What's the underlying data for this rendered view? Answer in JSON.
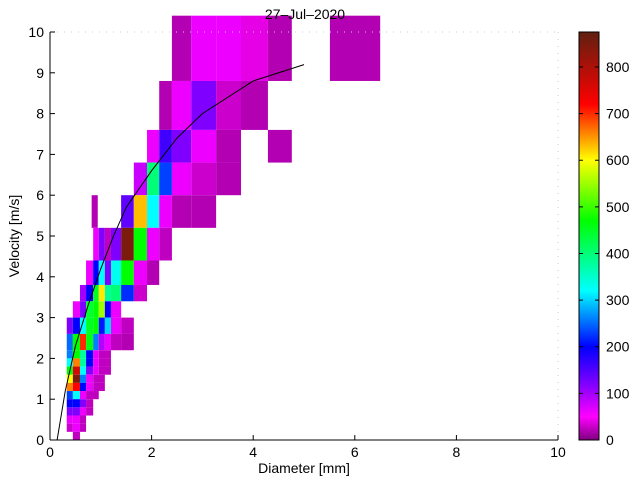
{
  "chart_data": {
    "type": "heatmap",
    "title": "27–Jul–2020",
    "xlabel": "Diameter [mm]",
    "ylabel": "Velocity [m/s]",
    "xlim": [
      0,
      10
    ],
    "ylim": [
      0,
      10
    ],
    "xticks": [
      "0",
      "2",
      "4",
      "6",
      "8",
      "10"
    ],
    "yticks": [
      "0",
      "1",
      "2",
      "3",
      "4",
      "5",
      "6",
      "7",
      "8",
      "9",
      "10"
    ],
    "grid": false,
    "colorbar": {
      "range": [
        0,
        875
      ],
      "ticks": [
        "0",
        "100",
        "200",
        "300",
        "400",
        "500",
        "600",
        "700",
        "800"
      ],
      "colormap": [
        [
          0,
          "#800080"
        ],
        [
          50,
          "#ff00ff"
        ],
        [
          120,
          "#8000ff"
        ],
        [
          200,
          "#0000ff"
        ],
        [
          320,
          "#00ffff"
        ],
        [
          470,
          "#00ff00"
        ],
        [
          600,
          "#ffff00"
        ],
        [
          720,
          "#ff0000"
        ],
        [
          875,
          "#602010"
        ]
      ]
    },
    "rows": [
      {
        "v": [
          8.8,
          10.4
        ],
        "cells": [
          [
            2.4,
            2.78,
            20
          ],
          [
            2.78,
            3.27,
            60
          ],
          [
            3.27,
            3.76,
            60
          ],
          [
            3.76,
            4.29,
            40
          ],
          [
            4.29,
            4.76,
            20
          ],
          [
            5.51,
            6.5,
            20
          ]
        ]
      },
      {
        "v": [
          7.6,
          8.8
        ],
        "cells": [
          [
            2.15,
            2.4,
            20
          ],
          [
            2.4,
            2.78,
            60
          ],
          [
            2.78,
            3.27,
            120
          ],
          [
            3.27,
            3.76,
            30
          ],
          [
            3.76,
            4.29,
            20
          ]
        ]
      },
      {
        "v": [
          6.8,
          7.6
        ],
        "cells": [
          [
            1.91,
            2.15,
            60
          ],
          [
            2.15,
            2.4,
            160
          ],
          [
            2.4,
            2.78,
            120
          ],
          [
            2.78,
            3.27,
            60
          ],
          [
            3.27,
            3.76,
            20
          ],
          [
            4.29,
            4.76,
            20
          ]
        ]
      },
      {
        "v": [
          6.0,
          6.8
        ],
        "cells": [
          [
            1.65,
            1.91,
            80
          ],
          [
            1.91,
            2.15,
            400
          ],
          [
            2.15,
            2.4,
            230
          ],
          [
            2.4,
            2.78,
            60
          ],
          [
            2.78,
            3.27,
            30
          ],
          [
            3.27,
            3.76,
            20
          ]
        ]
      },
      {
        "v": [
          5.2,
          6.0
        ],
        "cells": [
          [
            0.82,
            0.94,
            20
          ],
          [
            1.4,
            1.65,
            140
          ],
          [
            1.65,
            1.91,
            630
          ],
          [
            1.91,
            2.15,
            320
          ],
          [
            2.15,
            2.4,
            60
          ],
          [
            2.4,
            2.78,
            20
          ],
          [
            2.78,
            3.27,
            20
          ]
        ]
      },
      {
        "v": [
          4.4,
          5.2
        ],
        "cells": [
          [
            0.85,
            0.96,
            60
          ],
          [
            0.96,
            1.08,
            120
          ],
          [
            1.08,
            1.2,
            25
          ],
          [
            1.2,
            1.4,
            120
          ],
          [
            1.4,
            1.65,
            850
          ],
          [
            1.65,
            1.91,
            470
          ],
          [
            1.91,
            2.15,
            60
          ],
          [
            2.15,
            2.4,
            25
          ]
        ]
      },
      {
        "v": [
          3.8,
          4.4
        ],
        "cells": [
          [
            0.71,
            0.85,
            60
          ],
          [
            0.85,
            0.96,
            200
          ],
          [
            0.96,
            1.08,
            320
          ],
          [
            1.08,
            1.2,
            120
          ],
          [
            1.2,
            1.4,
            330
          ],
          [
            1.4,
            1.65,
            470
          ],
          [
            1.65,
            1.91,
            60
          ],
          [
            1.91,
            2.15,
            20
          ]
        ]
      },
      {
        "v": [
          3.4,
          3.8
        ],
        "cells": [
          [
            0.59,
            0.71,
            100
          ],
          [
            0.71,
            0.85,
            200
          ],
          [
            0.85,
            0.96,
            450
          ],
          [
            0.96,
            1.08,
            610
          ],
          [
            1.08,
            1.2,
            380
          ],
          [
            1.2,
            1.4,
            400
          ],
          [
            1.4,
            1.65,
            220
          ],
          [
            1.65,
            1.91,
            30
          ]
        ]
      },
      {
        "v": [
          3.0,
          3.4
        ],
        "cells": [
          [
            0.45,
            0.59,
            60
          ],
          [
            0.59,
            0.71,
            120
          ],
          [
            0.71,
            0.85,
            440
          ],
          [
            0.85,
            0.96,
            470
          ],
          [
            0.96,
            1.08,
            550
          ],
          [
            1.08,
            1.2,
            200
          ],
          [
            1.2,
            1.4,
            60
          ]
        ]
      },
      {
        "v": [
          2.6,
          3.0
        ],
        "cells": [
          [
            0.33,
            0.45,
            120
          ],
          [
            0.45,
            0.59,
            200
          ],
          [
            0.59,
            0.71,
            320
          ],
          [
            0.71,
            0.85,
            450
          ],
          [
            0.85,
            0.96,
            470
          ],
          [
            0.96,
            1.08,
            210
          ],
          [
            1.08,
            1.2,
            300
          ],
          [
            1.2,
            1.4,
            60
          ],
          [
            1.4,
            1.65,
            25
          ]
        ]
      },
      {
        "v": [
          2.2,
          2.6
        ],
        "cells": [
          [
            0.33,
            0.45,
            250
          ],
          [
            0.45,
            0.59,
            470
          ],
          [
            0.59,
            0.71,
            700
          ],
          [
            0.71,
            0.85,
            460
          ],
          [
            0.85,
            0.96,
            260
          ],
          [
            0.96,
            1.08,
            90
          ],
          [
            1.08,
            1.2,
            60
          ],
          [
            1.2,
            1.4,
            25
          ],
          [
            1.4,
            1.65,
            20
          ]
        ]
      },
      {
        "v": [
          2.0,
          2.2
        ],
        "cells": [
          [
            0.33,
            0.45,
            260
          ],
          [
            0.45,
            0.59,
            470
          ],
          [
            0.59,
            0.71,
            380
          ],
          [
            0.71,
            0.85,
            200
          ],
          [
            0.85,
            0.96,
            60
          ],
          [
            0.96,
            1.2,
            25
          ]
        ]
      },
      {
        "v": [
          1.8,
          2.0
        ],
        "cells": [
          [
            0.33,
            0.45,
            320
          ],
          [
            0.45,
            0.59,
            660
          ],
          [
            0.59,
            0.71,
            380
          ],
          [
            0.71,
            0.85,
            200
          ],
          [
            0.85,
            0.96,
            60
          ],
          [
            0.96,
            1.2,
            25
          ]
        ]
      },
      {
        "v": [
          1.6,
          1.8
        ],
        "cells": [
          [
            0.33,
            0.45,
            470
          ],
          [
            0.45,
            0.59,
            760
          ],
          [
            0.59,
            0.71,
            320
          ],
          [
            0.71,
            0.85,
            120
          ],
          [
            0.85,
            0.96,
            60
          ],
          [
            0.96,
            1.2,
            25
          ]
        ]
      },
      {
        "v": [
          1.4,
          1.6
        ],
        "cells": [
          [
            0.33,
            0.45,
            600
          ],
          [
            0.45,
            0.59,
            850
          ],
          [
            0.59,
            0.71,
            260
          ],
          [
            0.71,
            0.85,
            60
          ],
          [
            0.85,
            1.08,
            25
          ]
        ]
      },
      {
        "v": [
          1.2,
          1.4
        ],
        "cells": [
          [
            0.33,
            0.45,
            660
          ],
          [
            0.45,
            0.59,
            720
          ],
          [
            0.59,
            0.71,
            200
          ],
          [
            0.71,
            0.85,
            60
          ],
          [
            0.85,
            1.08,
            25
          ]
        ]
      },
      {
        "v": [
          1.0,
          1.2
        ],
        "cells": [
          [
            0.33,
            0.45,
            230
          ],
          [
            0.45,
            0.59,
            320
          ],
          [
            0.59,
            0.71,
            60
          ],
          [
            0.71,
            0.96,
            25
          ]
        ]
      },
      {
        "v": [
          0.8,
          1.0
        ],
        "cells": [
          [
            0.33,
            0.45,
            200
          ],
          [
            0.45,
            0.59,
            200
          ],
          [
            0.59,
            0.71,
            120
          ],
          [
            0.71,
            0.85,
            25
          ]
        ]
      },
      {
        "v": [
          0.6,
          0.8
        ],
        "cells": [
          [
            0.33,
            0.45,
            120
          ],
          [
            0.45,
            0.59,
            120
          ],
          [
            0.59,
            0.71,
            60
          ],
          [
            0.71,
            0.85,
            25
          ]
        ]
      },
      {
        "v": [
          0.4,
          0.6
        ],
        "cells": [
          [
            0.33,
            0.45,
            60
          ],
          [
            0.45,
            0.59,
            60
          ],
          [
            0.59,
            0.71,
            25
          ]
        ]
      },
      {
        "v": [
          0.2,
          0.4
        ],
        "cells": [
          [
            0.33,
            0.45,
            30
          ],
          [
            0.45,
            0.59,
            60
          ],
          [
            0.59,
            0.71,
            25
          ]
        ]
      },
      {
        "v": [
          0.0,
          0.2
        ],
        "cells": [
          [
            0.45,
            0.59,
            25
          ]
        ]
      }
    ],
    "fit_curve": {
      "x": [
        0.14,
        0.3,
        0.5,
        0.75,
        1.0,
        1.25,
        1.5,
        2.0,
        2.5,
        3.0,
        4.0,
        5.0
      ],
      "y": [
        0.0,
        1.2,
        2.3,
        3.3,
        4.2,
        5.0,
        5.7,
        6.6,
        7.4,
        8.0,
        8.8,
        9.2
      ]
    }
  }
}
